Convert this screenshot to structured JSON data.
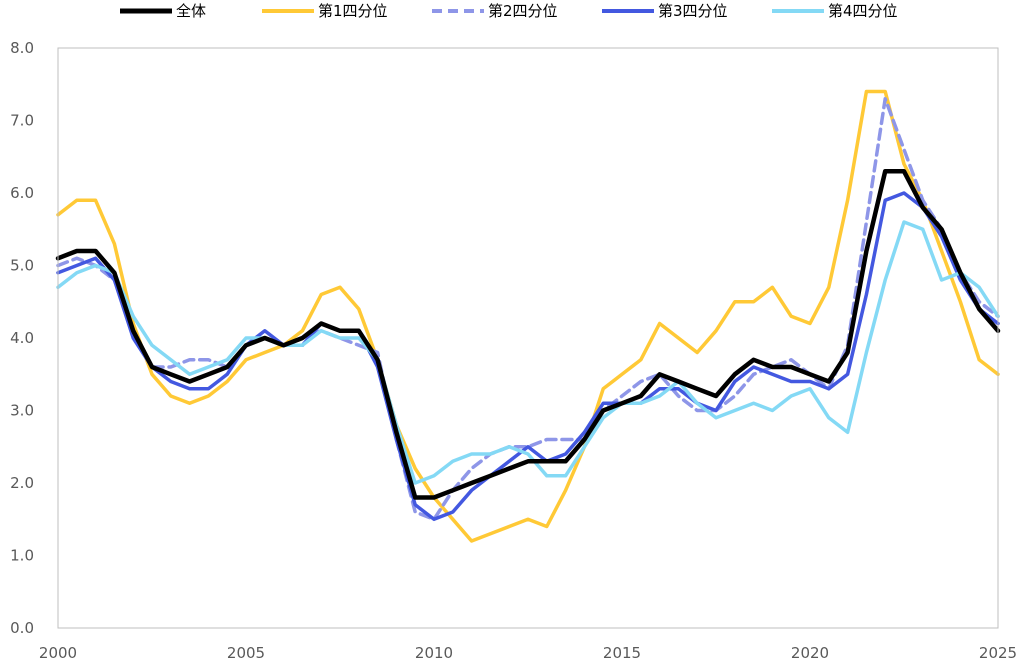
{
  "chart_data": {
    "type": "line",
    "title": "",
    "xlabel": "",
    "ylabel": "",
    "xlim": [
      2000,
      2025
    ],
    "ylim": [
      0.0,
      8.0
    ],
    "x_ticks": [
      "2000",
      "2005",
      "2010",
      "2015",
      "2020",
      "2025"
    ],
    "x_tick_values": [
      2000,
      2005,
      2010,
      2015,
      2020,
      2025
    ],
    "y_ticks": [
      "0.0",
      "1.0",
      "2.0",
      "3.0",
      "4.0",
      "5.0",
      "6.0",
      "7.0",
      "8.0"
    ],
    "y_tick_values": [
      0,
      1,
      2,
      3,
      4,
      5,
      6,
      7,
      8
    ],
    "grid": false,
    "legend_position": "top",
    "series": [
      {
        "name": "全体",
        "color": "#000000",
        "dash": "solid",
        "x": [
          2000.0,
          2000.5,
          2001.0,
          2001.5,
          2002.0,
          2002.5,
          2003.0,
          2003.5,
          2004.0,
          2004.5,
          2005.0,
          2005.5,
          2006.0,
          2006.5,
          2007.0,
          2007.5,
          2008.0,
          2008.5,
          2009.0,
          2009.5,
          2010.0,
          2010.5,
          2011.0,
          2011.5,
          2012.0,
          2012.5,
          2013.0,
          2013.5,
          2014.0,
          2014.5,
          2015.0,
          2015.5,
          2016.0,
          2016.5,
          2017.0,
          2017.5,
          2018.0,
          2018.5,
          2019.0,
          2019.5,
          2020.0,
          2020.5,
          2021.0,
          2021.5,
          2022.0,
          2022.5,
          2023.0,
          2023.5,
          2024.0,
          2024.5,
          2025.0
        ],
        "y": [
          5.1,
          5.2,
          5.2,
          4.9,
          4.1,
          3.6,
          3.5,
          3.4,
          3.5,
          3.6,
          3.9,
          4.0,
          3.9,
          4.0,
          4.2,
          4.1,
          4.1,
          3.7,
          2.7,
          1.8,
          1.8,
          1.9,
          2.0,
          2.1,
          2.2,
          2.3,
          2.3,
          2.3,
          2.6,
          3.0,
          3.1,
          3.2,
          3.5,
          3.4,
          3.3,
          3.2,
          3.5,
          3.7,
          3.6,
          3.6,
          3.5,
          3.4,
          3.8,
          5.2,
          6.3,
          6.3,
          5.8,
          5.5,
          4.9,
          4.4,
          4.1
        ]
      },
      {
        "name": "第1四分位",
        "color": "#ffc936",
        "dash": "solid",
        "x": [
          2000.0,
          2000.5,
          2001.0,
          2001.5,
          2002.0,
          2002.5,
          2003.0,
          2003.5,
          2004.0,
          2004.5,
          2005.0,
          2005.5,
          2006.0,
          2006.5,
          2007.0,
          2007.5,
          2008.0,
          2008.5,
          2009.0,
          2009.5,
          2010.0,
          2010.5,
          2011.0,
          2011.5,
          2012.0,
          2012.5,
          2013.0,
          2013.5,
          2014.0,
          2014.5,
          2015.0,
          2015.5,
          2016.0,
          2016.5,
          2017.0,
          2017.5,
          2018.0,
          2018.5,
          2019.0,
          2019.5,
          2020.0,
          2020.5,
          2021.0,
          2021.5,
          2022.0,
          2022.5,
          2023.0,
          2023.5,
          2024.0,
          2024.5,
          2025.0
        ],
        "y": [
          5.7,
          5.9,
          5.9,
          5.3,
          4.2,
          3.5,
          3.2,
          3.1,
          3.2,
          3.4,
          3.7,
          3.8,
          3.9,
          4.1,
          4.6,
          4.7,
          4.4,
          3.7,
          2.8,
          2.2,
          1.8,
          1.5,
          1.2,
          1.3,
          1.4,
          1.5,
          1.4,
          1.9,
          2.5,
          3.3,
          3.5,
          3.7,
          4.2,
          4.0,
          3.8,
          4.1,
          4.5,
          4.5,
          4.7,
          4.3,
          4.2,
          4.7,
          5.9,
          7.4,
          7.4,
          6.4,
          5.9,
          5.2,
          4.5,
          3.7,
          3.5
        ]
      },
      {
        "name": "第2四分位",
        "color": "#8e96e8",
        "dash": "dashed",
        "x": [
          2000.0,
          2000.5,
          2001.0,
          2001.5,
          2002.0,
          2002.5,
          2003.0,
          2003.5,
          2004.0,
          2004.5,
          2005.0,
          2005.5,
          2006.0,
          2006.5,
          2007.0,
          2007.5,
          2008.0,
          2008.5,
          2009.0,
          2009.5,
          2010.0,
          2010.5,
          2011.0,
          2011.5,
          2012.0,
          2012.5,
          2013.0,
          2013.5,
          2014.0,
          2014.5,
          2015.0,
          2015.5,
          2016.0,
          2016.5,
          2017.0,
          2017.5,
          2018.0,
          2018.5,
          2019.0,
          2019.5,
          2020.0,
          2020.5,
          2021.0,
          2021.5,
          2022.0,
          2022.5,
          2023.0,
          2023.5,
          2024.0,
          2024.5,
          2025.0
        ],
        "y": [
          5.0,
          5.1,
          5.0,
          4.8,
          4.1,
          3.6,
          3.6,
          3.7,
          3.7,
          3.6,
          3.9,
          4.0,
          3.9,
          4.0,
          4.1,
          4.0,
          3.9,
          3.8,
          2.6,
          1.6,
          1.5,
          1.9,
          2.2,
          2.4,
          2.5,
          2.5,
          2.6,
          2.6,
          2.6,
          3.0,
          3.2,
          3.4,
          3.5,
          3.2,
          3.0,
          3.0,
          3.2,
          3.5,
          3.6,
          3.7,
          3.5,
          3.3,
          3.9,
          5.6,
          7.3,
          6.6,
          5.9,
          5.5,
          4.9,
          4.5,
          4.3
        ]
      },
      {
        "name": "第3四分位",
        "color": "#4358e0",
        "dash": "solid",
        "x": [
          2000.0,
          2000.5,
          2001.0,
          2001.5,
          2002.0,
          2002.5,
          2003.0,
          2003.5,
          2004.0,
          2004.5,
          2005.0,
          2005.5,
          2006.0,
          2006.5,
          2007.0,
          2007.5,
          2008.0,
          2008.5,
          2009.0,
          2009.5,
          2010.0,
          2010.5,
          2011.0,
          2011.5,
          2012.0,
          2012.5,
          2013.0,
          2013.5,
          2014.0,
          2014.5,
          2015.0,
          2015.5,
          2016.0,
          2016.5,
          2017.0,
          2017.5,
          2018.0,
          2018.5,
          2019.0,
          2019.5,
          2020.0,
          2020.5,
          2021.0,
          2021.5,
          2022.0,
          2022.5,
          2023.0,
          2023.5,
          2024.0,
          2024.5,
          2025.0
        ],
        "y": [
          4.9,
          5.0,
          5.1,
          4.8,
          4.0,
          3.6,
          3.4,
          3.3,
          3.3,
          3.5,
          3.9,
          4.1,
          3.9,
          3.9,
          4.2,
          4.1,
          4.1,
          3.6,
          2.6,
          1.7,
          1.5,
          1.6,
          1.9,
          2.1,
          2.3,
          2.5,
          2.3,
          2.4,
          2.7,
          3.1,
          3.1,
          3.1,
          3.3,
          3.3,
          3.1,
          3.0,
          3.4,
          3.6,
          3.5,
          3.4,
          3.4,
          3.3,
          3.5,
          4.6,
          5.9,
          6.0,
          5.8,
          5.4,
          4.8,
          4.4,
          4.2
        ]
      },
      {
        "name": "第4四分位",
        "color": "#84d9f5",
        "dash": "solid",
        "x": [
          2000.0,
          2000.5,
          2001.0,
          2001.5,
          2002.0,
          2002.5,
          2003.0,
          2003.5,
          2004.0,
          2004.5,
          2005.0,
          2005.5,
          2006.0,
          2006.5,
          2007.0,
          2007.5,
          2008.0,
          2008.5,
          2009.0,
          2009.5,
          2010.0,
          2010.5,
          2011.0,
          2011.5,
          2012.0,
          2012.5,
          2013.0,
          2013.5,
          2014.0,
          2014.5,
          2015.0,
          2015.5,
          2016.0,
          2016.5,
          2017.0,
          2017.5,
          2018.0,
          2018.5,
          2019.0,
          2019.5,
          2020.0,
          2020.5,
          2021.0,
          2021.5,
          2022.0,
          2022.5,
          2023.0,
          2023.5,
          2024.0,
          2024.5,
          2025.0
        ],
        "y": [
          4.7,
          4.9,
          5.0,
          4.9,
          4.3,
          3.9,
          3.7,
          3.5,
          3.6,
          3.7,
          4.0,
          4.0,
          3.9,
          3.9,
          4.1,
          4.0,
          4.0,
          3.7,
          2.8,
          2.0,
          2.1,
          2.3,
          2.4,
          2.4,
          2.5,
          2.4,
          2.1,
          2.1,
          2.5,
          2.9,
          3.1,
          3.1,
          3.2,
          3.4,
          3.1,
          2.9,
          3.0,
          3.1,
          3.0,
          3.2,
          3.3,
          2.9,
          2.7,
          3.8,
          4.8,
          5.6,
          5.5,
          4.8,
          4.9,
          4.7,
          4.3
        ]
      }
    ]
  }
}
